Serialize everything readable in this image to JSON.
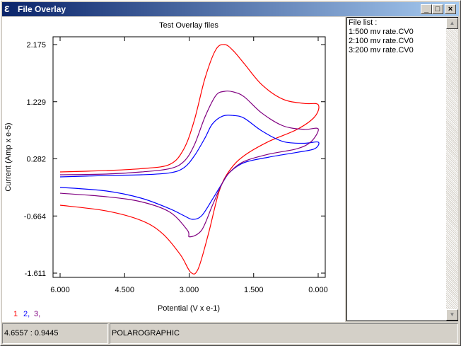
{
  "window": {
    "title": "File Overlay",
    "icon": "e-app-icon",
    "buttons": [
      "minimize",
      "maximize",
      "close"
    ]
  },
  "file_list": {
    "header": "File list :",
    "items": [
      "1:500 mv rate.CV0",
      "2:100 mv rate.CV0",
      "3:200 mv rate.CV0"
    ]
  },
  "status": {
    "coords": "4.6557 : 0.9445",
    "mode": "POLAROGRAPHIC"
  },
  "legend": [
    {
      "label": "1",
      "color": "#ff0000"
    },
    {
      "label": "2,",
      "color": "#0000ff"
    },
    {
      "label": "3,",
      "color": "#800080"
    }
  ],
  "chart_data": {
    "type": "line",
    "title": "Test Overlay files",
    "xlabel": "Potential (V x e-1)",
    "ylabel": "Current (Amp x e-5)",
    "xlim": [
      6,
      0
    ],
    "ylim": [
      -1.611,
      2.175
    ],
    "x_reversed": true,
    "xticks": [
      "6.000",
      "4.500",
      "3.000",
      "1.500",
      "0.000"
    ],
    "yticks": [
      "2.175",
      "1.229",
      "0.282",
      "-0.664",
      "-1.611"
    ],
    "series": [
      {
        "name": "1",
        "color": "#ff0000",
        "points": [
          [
            6,
            -0.486
          ],
          [
            4.93,
            -0.58
          ],
          [
            4.11,
            -0.74
          ],
          [
            3.62,
            -0.955
          ],
          [
            3.2,
            -1.31
          ],
          [
            2.96,
            -1.6
          ],
          [
            2.79,
            -1.54
          ],
          [
            2.55,
            -0.955
          ],
          [
            2.3,
            -0.25
          ],
          [
            2.05,
            0.1
          ],
          [
            1.72,
            0.335
          ],
          [
            1.15,
            0.57
          ],
          [
            0.49,
            0.77
          ],
          [
            0.08,
            0.98
          ],
          [
            0,
            1.18
          ],
          [
            0.33,
            1.2
          ],
          [
            0.82,
            1.27
          ],
          [
            1.31,
            1.51
          ],
          [
            1.72,
            1.86
          ],
          [
            1.97,
            2.07
          ],
          [
            2.17,
            2.175
          ],
          [
            2.38,
            2.09
          ],
          [
            2.63,
            1.62
          ],
          [
            2.88,
            0.92
          ],
          [
            3.12,
            0.45
          ],
          [
            3.45,
            0.19
          ],
          [
            4.11,
            0.12
          ],
          [
            4.93,
            0.088
          ],
          [
            6,
            0.065
          ]
        ]
      },
      {
        "name": "2",
        "color": "#0000ff",
        "points": [
          [
            6,
            -0.19
          ],
          [
            4.93,
            -0.25
          ],
          [
            4.11,
            -0.37
          ],
          [
            3.45,
            -0.545
          ],
          [
            3.12,
            -0.66
          ],
          [
            2.92,
            -0.72
          ],
          [
            2.71,
            -0.66
          ],
          [
            2.46,
            -0.39
          ],
          [
            2.22,
            -0.11
          ],
          [
            2.05,
            0.065
          ],
          [
            1.72,
            0.22
          ],
          [
            1.15,
            0.31
          ],
          [
            0.49,
            0.39
          ],
          [
            0.08,
            0.45
          ],
          [
            0,
            0.56
          ],
          [
            0.33,
            0.54
          ],
          [
            0.82,
            0.57
          ],
          [
            1.31,
            0.745
          ],
          [
            1.72,
            0.955
          ],
          [
            1.97,
            1.0
          ],
          [
            2.22,
            0.99
          ],
          [
            2.46,
            0.86
          ],
          [
            2.63,
            0.63
          ],
          [
            2.88,
            0.33
          ],
          [
            3.12,
            0.135
          ],
          [
            3.45,
            0.05
          ],
          [
            4.11,
            0.018
          ],
          [
            4.93,
            0.006
          ],
          [
            6,
            -0.017
          ]
        ]
      },
      {
        "name": "3",
        "color": "#800080",
        "points": [
          [
            6,
            -0.287
          ],
          [
            4.93,
            -0.345
          ],
          [
            4.11,
            -0.43
          ],
          [
            3.45,
            -0.6
          ],
          [
            3.04,
            -0.9
          ],
          [
            2.99,
            -1.01
          ],
          [
            2.71,
            -0.9
          ],
          [
            2.46,
            -0.49
          ],
          [
            2.22,
            -0.11
          ],
          [
            2.05,
            0.065
          ],
          [
            1.72,
            0.24
          ],
          [
            1.15,
            0.36
          ],
          [
            0.49,
            0.45
          ],
          [
            0.16,
            0.57
          ],
          [
            0,
            0.78
          ],
          [
            0.33,
            0.77
          ],
          [
            0.82,
            0.83
          ],
          [
            1.31,
            1.04
          ],
          [
            1.72,
            1.31
          ],
          [
            1.97,
            1.39
          ],
          [
            2.18,
            1.4
          ],
          [
            2.38,
            1.33
          ],
          [
            2.63,
            0.98
          ],
          [
            2.88,
            0.51
          ],
          [
            3.12,
            0.24
          ],
          [
            3.45,
            0.12
          ],
          [
            4.11,
            0.065
          ],
          [
            4.93,
            0.03
          ],
          [
            6,
            0.018
          ]
        ]
      }
    ]
  }
}
